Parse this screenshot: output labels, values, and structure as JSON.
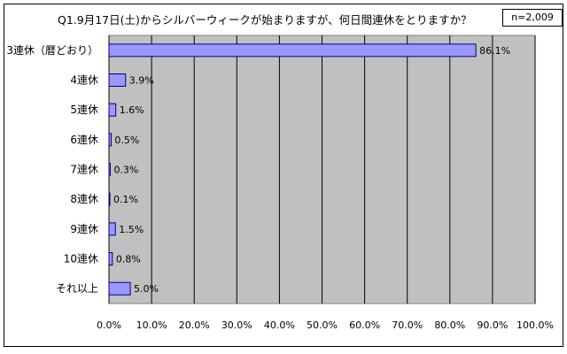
{
  "chart_data": {
    "type": "bar",
    "orientation": "horizontal",
    "title": "Q1.9月17日(土)からシルバーウィークが始まりますが、何日間連休をとりますか？",
    "sample_size": "n=2,009",
    "categories": [
      "3連休（暦どおり）",
      "4連休",
      "5連休",
      "6連休",
      "7連休",
      "8連休",
      "9連休",
      "10連休",
      "それ以上"
    ],
    "values": [
      86.1,
      3.9,
      1.6,
      0.5,
      0.3,
      0.1,
      1.5,
      0.8,
      5.0
    ],
    "value_labels": [
      "86.1%",
      "3.9%",
      "1.6%",
      "0.5%",
      "0.3%",
      "0.1%",
      "1.5%",
      "0.8%",
      "5.0%"
    ],
    "xlim": [
      0,
      100
    ],
    "xticks": [
      "0.0%",
      "10.0%",
      "20.0%",
      "30.0%",
      "40.0%",
      "50.0%",
      "60.0%",
      "70.0%",
      "80.0%",
      "90.0%",
      "100.0%"
    ],
    "grid": true,
    "colors": {
      "bar_fill": "#9999ff",
      "bar_stroke": "#000080",
      "plot_bg": "#c0c0c0"
    }
  }
}
